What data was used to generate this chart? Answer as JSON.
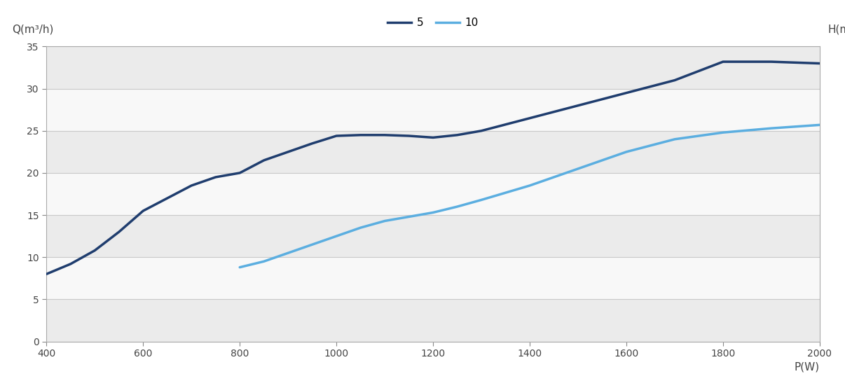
{
  "series5_x": [
    400,
    450,
    500,
    550,
    600,
    650,
    700,
    750,
    800,
    850,
    900,
    950,
    1000,
    1050,
    1100,
    1150,
    1200,
    1250,
    1300,
    1400,
    1500,
    1600,
    1700,
    1800,
    1900,
    2000
  ],
  "series5_y": [
    8.0,
    9.2,
    10.8,
    13.0,
    15.5,
    17.0,
    18.5,
    19.5,
    20.0,
    21.5,
    22.5,
    23.5,
    24.4,
    24.5,
    24.5,
    24.4,
    24.2,
    24.5,
    25.0,
    26.5,
    28.0,
    29.5,
    31.0,
    33.2,
    33.2,
    33.0
  ],
  "series10_x": [
    800,
    850,
    900,
    950,
    1000,
    1050,
    1100,
    1150,
    1200,
    1250,
    1300,
    1400,
    1500,
    1600,
    1700,
    1800,
    1900,
    2000
  ],
  "series10_y": [
    8.8,
    9.5,
    10.5,
    11.5,
    12.5,
    13.5,
    14.3,
    14.8,
    15.3,
    16.0,
    16.8,
    18.5,
    20.5,
    22.5,
    24.0,
    24.8,
    25.3,
    25.7
  ],
  "series5_color": "#1f3d6e",
  "series10_color": "#5baee0",
  "series5_label": "5",
  "series10_label": "10",
  "xlabel": "P(W)",
  "ylabel_left": "Q(m³/h)",
  "ylabel_right": "H(m)",
  "xlim": [
    400,
    2000
  ],
  "ylim": [
    0,
    35
  ],
  "xticks": [
    400,
    600,
    800,
    1000,
    1200,
    1400,
    1600,
    1800,
    2000
  ],
  "yticks": [
    0,
    5,
    10,
    15,
    20,
    25,
    30,
    35
  ],
  "bg_color": "#ffffff",
  "plot_bg_light": "#f0f0f0",
  "plot_bg_dark": "#e0e0e0",
  "grid_line_color": "#c8c8c8",
  "linewidth": 2.5,
  "band_colors": [
    "#ebebeb",
    "#f8f8f8"
  ]
}
